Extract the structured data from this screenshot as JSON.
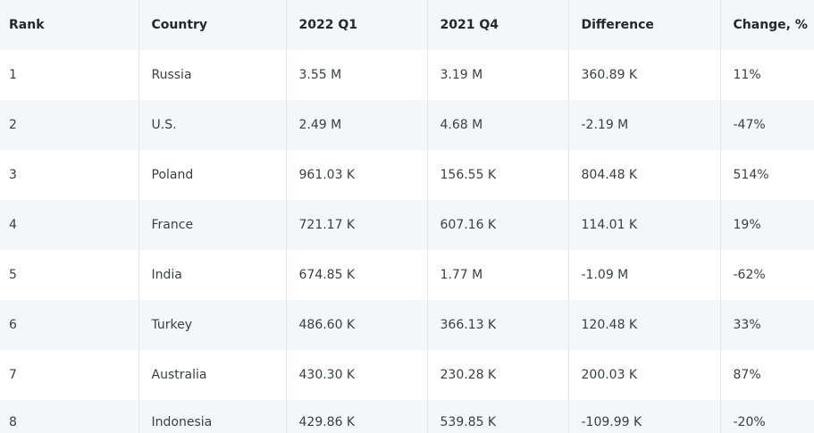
{
  "table": {
    "headers": [
      "Rank",
      "Country",
      "2022 Q1",
      "2021 Q4",
      "Difference",
      "Change, %"
    ],
    "rows": [
      [
        "1",
        "Russia",
        "3.55 M",
        "3.19 M",
        "360.89 K",
        "11%"
      ],
      [
        "2",
        "U.S.",
        "2.49 M",
        "4.68 M",
        "-2.19 M",
        "-47%"
      ],
      [
        "3",
        "Poland",
        "961.03 K",
        "156.55 K",
        "804.48 K",
        "514%"
      ],
      [
        "4",
        "France",
        "721.17 K",
        "607.16 K",
        "114.01 K",
        "19%"
      ],
      [
        "5",
        "India",
        "674.85 K",
        "1.77 M",
        "-1.09 M",
        "-62%"
      ],
      [
        "6",
        "Turkey",
        "486.60 K",
        "366.13 K",
        "120.48 K",
        "33%"
      ],
      [
        "7",
        "Australia",
        "430.30 K",
        "230.28 K",
        "200.03 K",
        "87%"
      ],
      [
        "8",
        "Indonesia",
        "429.86 K",
        "539.85 K",
        "-109.99 K",
        "-20%"
      ]
    ]
  }
}
